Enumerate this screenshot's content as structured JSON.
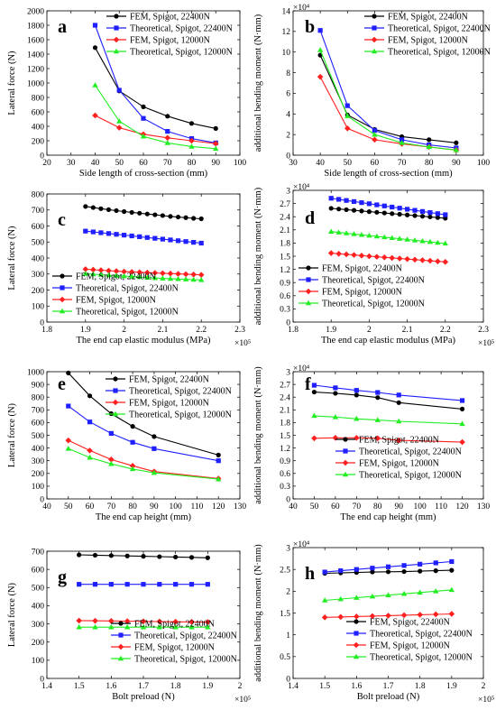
{
  "legend_labels": [
    "FEM, Spigot, 22400N",
    "Theoretical, Spigot, 22400N",
    "FEM, Spigot, 12000N",
    "Theoretical, Spigot, 12000N"
  ],
  "series_colors": [
    "#000000",
    "#1f1fff",
    "#ff1f1f",
    "#22ee22"
  ],
  "series_markers": [
    "circle",
    "square",
    "diamond",
    "triangle"
  ],
  "chart_data": [
    {
      "panel": "a",
      "type": "line",
      "xlabel": "Side length of cross-section (mm)",
      "ylabel": "Lateral force (N)",
      "xlim": [
        20,
        100
      ],
      "ylim": [
        0,
        2000
      ],
      "xticks": [
        20,
        30,
        40,
        50,
        60,
        70,
        80,
        90,
        100
      ],
      "yticks": [
        0,
        200,
        400,
        600,
        800,
        1000,
        1200,
        1400,
        1600,
        1800,
        2000
      ],
      "x_multiplier": "",
      "y_multiplier": "",
      "legend_position": "top-right",
      "x": [
        40,
        50,
        60,
        70,
        80,
        90
      ],
      "series": [
        {
          "name": "FEM, Spigot, 22400N",
          "values": [
            1490,
            890,
            670,
            540,
            440,
            370
          ]
        },
        {
          "name": "Theoretical, Spigot, 22400N",
          "values": [
            1800,
            900,
            510,
            330,
            230,
            170
          ]
        },
        {
          "name": "FEM, Spigot, 12000N",
          "values": [
            550,
            380,
            290,
            240,
            200,
            160
          ]
        },
        {
          "name": "Theoretical, Spigot, 12000N",
          "values": [
            970,
            470,
            260,
            170,
            120,
            90
          ]
        }
      ]
    },
    {
      "panel": "b",
      "type": "line",
      "xlabel": "Side length of cross-section (mm)",
      "ylabel": "additional bending moment (N·mm)",
      "xlim": [
        30,
        100
      ],
      "ylim": [
        0,
        140000
      ],
      "xticks": [
        30,
        40,
        50,
        60,
        70,
        80,
        90,
        100
      ],
      "yticks": [
        0,
        20000,
        40000,
        60000,
        80000,
        100000,
        120000,
        140000
      ],
      "ytick_labels": [
        "0",
        "2",
        "4",
        "6",
        "8",
        "10",
        "12",
        "14"
      ],
      "x_multiplier": "",
      "y_multiplier": "×10⁴",
      "legend_position": "top-right",
      "x": [
        40,
        50,
        60,
        70,
        80,
        90
      ],
      "series": [
        {
          "name": "FEM, Spigot, 22400N",
          "values": [
            97000,
            39000,
            25000,
            18000,
            15000,
            12000
          ]
        },
        {
          "name": "Theoretical, Spigot, 22400N",
          "values": [
            121000,
            48000,
            24000,
            15000,
            10000,
            7000
          ]
        },
        {
          "name": "FEM, Spigot, 12000N",
          "values": [
            76000,
            26000,
            15000,
            11000,
            8000,
            5000
          ]
        },
        {
          "name": "Theoretical, Spigot, 12000N",
          "values": [
            102000,
            38000,
            20000,
            12000,
            8000,
            5000
          ]
        }
      ]
    },
    {
      "panel": "c",
      "type": "line",
      "xlabel": "The end cap elastic modulus (MPa)",
      "ylabel": "Lateral force (N)",
      "xlim": [
        180000,
        230000
      ],
      "ylim": [
        0,
        800
      ],
      "xticks": [
        180000,
        190000,
        200000,
        210000,
        220000,
        230000
      ],
      "xtick_labels": [
        "1.8",
        "1.9",
        "2",
        "2.1",
        "2.2",
        "2.3"
      ],
      "yticks": [
        0,
        100,
        200,
        300,
        400,
        500,
        600,
        700,
        800
      ],
      "x_multiplier": "×10⁵",
      "y_multiplier": "",
      "legend_position": "bottom-left",
      "x": [
        190000,
        192000,
        194000,
        196000,
        198000,
        200000,
        202000,
        204000,
        206000,
        208000,
        210000,
        212000,
        214000,
        216000,
        218000,
        220000
      ],
      "series": [
        {
          "name": "FEM, Spigot, 22400N",
          "values": [
            722,
            715,
            708,
            702,
            696,
            690,
            685,
            680,
            675,
            670,
            665,
            660,
            656,
            652,
            648,
            645
          ]
        },
        {
          "name": "Theoretical, Spigot, 22400N",
          "values": [
            568,
            563,
            558,
            553,
            548,
            543,
            538,
            533,
            528,
            523,
            518,
            513,
            508,
            503,
            498,
            493
          ]
        },
        {
          "name": "FEM, Spigot, 12000N",
          "values": [
            330,
            327,
            324,
            321,
            318,
            315,
            313,
            311,
            309,
            307,
            305,
            303,
            301,
            299,
            297,
            295
          ]
        },
        {
          "name": "Theoretical, Spigot, 12000N",
          "values": [
            302,
            299,
            296,
            293,
            290,
            287,
            284,
            281,
            278,
            275,
            273,
            271,
            269,
            267,
            265,
            263
          ]
        }
      ]
    },
    {
      "panel": "d",
      "type": "line",
      "xlabel": "The end cap elastic modulus (MPa)",
      "ylabel": "additional bending moment (N·mm)",
      "xlim": [
        180000,
        230000
      ],
      "ylim": [
        0,
        30000
      ],
      "xticks": [
        180000,
        190000,
        200000,
        210000,
        220000,
        230000
      ],
      "xtick_labels": [
        "1.8",
        "1.9",
        "2",
        "2.1",
        "2.2",
        "2.3"
      ],
      "yticks": [
        0,
        3000,
        6000,
        9000,
        12000,
        15000,
        18000,
        21000,
        24000,
        27000,
        30000
      ],
      "ytick_labels": [
        "0",
        "0.3",
        "0.6",
        "0.9",
        "1.2",
        "1.5",
        "1.8",
        "2.1",
        "2.4",
        "2.7",
        "3"
      ],
      "x_multiplier": "×10⁵",
      "y_multiplier": "×10⁴",
      "legend_position": "bottom-left",
      "x": [
        190000,
        192000,
        194000,
        196000,
        198000,
        200000,
        202000,
        204000,
        206000,
        208000,
        210000,
        212000,
        214000,
        216000,
        218000,
        220000
      ],
      "series": [
        {
          "name": "FEM, Spigot, 22400N",
          "values": [
            25900,
            25750,
            25600,
            25450,
            25300,
            25150,
            25000,
            24850,
            24700,
            24550,
            24400,
            24250,
            24100,
            23950,
            23800,
            23650
          ]
        },
        {
          "name": "Theoretical, Spigot, 22400N",
          "values": [
            28200,
            27950,
            27700,
            27450,
            27200,
            26950,
            26700,
            26450,
            26200,
            25950,
            25700,
            25450,
            25200,
            24950,
            24700,
            24450
          ]
        },
        {
          "name": "FEM, Spigot, 12000N",
          "values": [
            15700,
            15560,
            15420,
            15280,
            15140,
            15000,
            14870,
            14740,
            14610,
            14480,
            14350,
            14220,
            14090,
            13960,
            13830,
            13700
          ]
        },
        {
          "name": "Theoretical, Spigot, 12000N",
          "values": [
            20600,
            20420,
            20240,
            20060,
            19880,
            19700,
            19520,
            19340,
            19160,
            18980,
            18800,
            18620,
            18440,
            18260,
            18080,
            17900
          ]
        }
      ]
    },
    {
      "panel": "e",
      "type": "line",
      "xlabel": "The end cap height (mm)",
      "ylabel": "Lateral force (N)",
      "xlim": [
        40,
        130
      ],
      "ylim": [
        0,
        1000
      ],
      "xticks": [
        40,
        50,
        60,
        70,
        80,
        90,
        100,
        110,
        120,
        130
      ],
      "yticks": [
        0,
        100,
        200,
        300,
        400,
        500,
        600,
        700,
        800,
        900,
        1000
      ],
      "x_multiplier": "",
      "y_multiplier": "",
      "legend_position": "top-right",
      "x": [
        50,
        60,
        70,
        80,
        90,
        120
      ],
      "series": [
        {
          "name": "FEM, Spigot, 22400N",
          "values": [
            990,
            810,
            670,
            570,
            490,
            345
          ]
        },
        {
          "name": "Theoretical, Spigot, 22400N",
          "values": [
            730,
            605,
            515,
            445,
            395,
            300
          ]
        },
        {
          "name": "FEM, Spigot, 12000N",
          "values": [
            460,
            380,
            310,
            260,
            215,
            160
          ]
        },
        {
          "name": "Theoretical, Spigot, 12000N",
          "values": [
            395,
            325,
            275,
            235,
            205,
            155
          ]
        }
      ]
    },
    {
      "panel": "f",
      "type": "line",
      "xlabel": "The end cap height (mm)",
      "ylabel": "additional bending moment (N·mm)",
      "xlim": [
        40,
        130
      ],
      "ylim": [
        0,
        30000
      ],
      "xticks": [
        40,
        50,
        60,
        70,
        80,
        90,
        100,
        110,
        120,
        130
      ],
      "yticks": [
        0,
        3000,
        6000,
        9000,
        12000,
        15000,
        18000,
        21000,
        24000,
        27000,
        30000
      ],
      "ytick_labels": [
        "0",
        "0.3",
        "0.6",
        "0.9",
        "1.2",
        "1.5",
        "1.8",
        "2.1",
        "2.4",
        "2.7",
        "3"
      ],
      "x_multiplier": "",
      "y_multiplier": "×10⁴",
      "legend_position": "bottom-right",
      "x": [
        50,
        60,
        70,
        80,
        90,
        120
      ],
      "series": [
        {
          "name": "FEM, Spigot, 22400N",
          "values": [
            25200,
            24900,
            24500,
            23900,
            22700,
            21200
          ]
        },
        {
          "name": "Theoretical, Spigot, 22400N",
          "values": [
            26800,
            26200,
            25600,
            25100,
            24500,
            23200
          ]
        },
        {
          "name": "FEM, Spigot, 12000N",
          "values": [
            14300,
            14400,
            14400,
            14300,
            13800,
            13400
          ]
        },
        {
          "name": "Theoretical, Spigot, 12000N",
          "values": [
            19600,
            19300,
            18900,
            18600,
            18300,
            17700
          ]
        }
      ]
    },
    {
      "panel": "g",
      "type": "line",
      "xlabel": "Bolt preload (N)",
      "ylabel": "Lateral force (N)",
      "xlim": [
        140000,
        200000
      ],
      "ylim": [
        0,
        700
      ],
      "xticks": [
        140000,
        150000,
        160000,
        170000,
        180000,
        190000,
        200000
      ],
      "xtick_labels": [
        "1.4",
        "1.5",
        "1.6",
        "1.7",
        "1.8",
        "1.9",
        "2"
      ],
      "yticks": [
        0,
        100,
        200,
        300,
        400,
        500,
        600,
        700
      ],
      "x_multiplier": "×10⁵",
      "y_multiplier": "",
      "legend_position": "bottom-right",
      "x": [
        150000,
        155000,
        160000,
        165000,
        170000,
        175000,
        180000,
        185000,
        190000
      ],
      "series": [
        {
          "name": "FEM, Spigot, 22400N",
          "values": [
            680,
            678,
            676,
            674,
            672,
            670,
            668,
            666,
            664
          ]
        },
        {
          "name": "Theoretical, Spigot, 22400N",
          "values": [
            518,
            518,
            518,
            518,
            518,
            518,
            518,
            518,
            518
          ]
        },
        {
          "name": "FEM, Spigot, 12000N",
          "values": [
            318,
            317,
            316,
            315,
            314,
            313,
            312,
            311,
            310
          ]
        },
        {
          "name": "Theoretical, Spigot, 12000N",
          "values": [
            282,
            282,
            282,
            282,
            282,
            282,
            282,
            282,
            282
          ]
        }
      ]
    },
    {
      "panel": "h",
      "type": "line",
      "xlabel": "Bolt preload (N)",
      "ylabel": "additional bending moment (N·mm)",
      "xlim": [
        140000,
        200000
      ],
      "ylim": [
        0,
        30000
      ],
      "xticks": [
        140000,
        150000,
        160000,
        170000,
        180000,
        190000,
        200000
      ],
      "xtick_labels": [
        "1.4",
        "1.5",
        "1.6",
        "1.7",
        "1.8",
        "1.9",
        "2"
      ],
      "yticks": [
        0,
        5000,
        10000,
        15000,
        20000,
        25000,
        30000
      ],
      "ytick_labels": [
        "0",
        "0.5",
        "1",
        "1.5",
        "2",
        "2.5",
        "3"
      ],
      "x_multiplier": "×10⁵",
      "y_multiplier": "×10⁴",
      "legend_position": "bottom-right",
      "x": [
        150000,
        155000,
        160000,
        165000,
        170000,
        175000,
        180000,
        185000,
        190000
      ],
      "series": [
        {
          "name": "FEM, Spigot, 22400N",
          "values": [
            24100,
            24200,
            24300,
            24400,
            24450,
            24500,
            24600,
            24700,
            24800
          ]
        },
        {
          "name": "Theoretical, Spigot, 22400N",
          "values": [
            24400,
            24700,
            25000,
            25300,
            25600,
            25900,
            26200,
            26500,
            26800
          ]
        },
        {
          "name": "FEM, Spigot, 12000N",
          "values": [
            14000,
            14100,
            14200,
            14300,
            14400,
            14500,
            14600,
            14700,
            14800
          ]
        },
        {
          "name": "Theoretical, Spigot, 12000N",
          "values": [
            17900,
            18200,
            18500,
            18800,
            19100,
            19400,
            19700,
            20000,
            20300
          ]
        }
      ]
    }
  ]
}
